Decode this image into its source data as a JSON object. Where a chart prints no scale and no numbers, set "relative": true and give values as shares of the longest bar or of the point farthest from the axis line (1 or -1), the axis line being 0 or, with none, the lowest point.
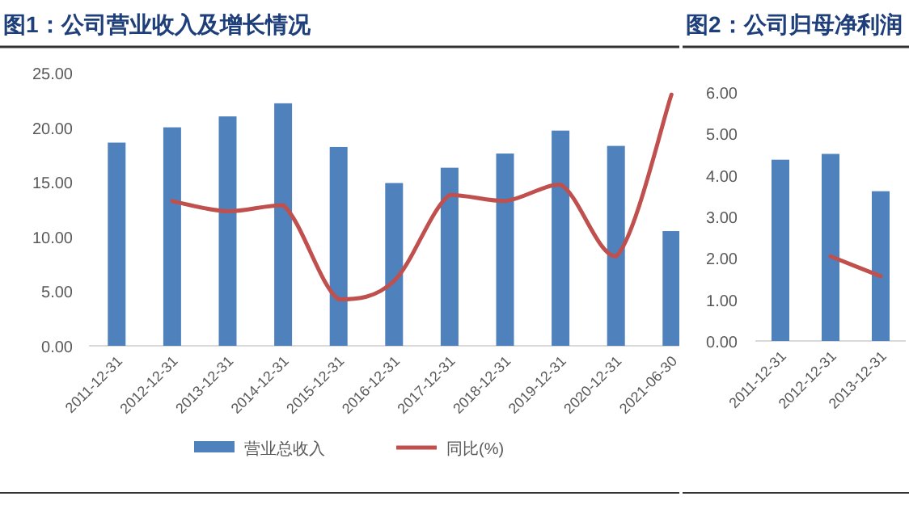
{
  "chart_data": [
    {
      "type": "bar",
      "title": "图1：公司营业收入及增长情况",
      "categories": [
        "2011-12-31",
        "2012-12-31",
        "2013-12-31",
        "2014-12-31",
        "2015-12-31",
        "2016-12-31",
        "2017-12-31",
        "2018-12-31",
        "2019-12-31",
        "2020-12-31",
        "2021-06-30"
      ],
      "ylim": [
        0,
        25
      ],
      "yticks": [
        {
          "value": 0,
          "label": "0.00"
        },
        {
          "value": 5,
          "label": "5.00"
        },
        {
          "value": 10,
          "label": "10.00"
        },
        {
          "value": 15,
          "label": "15.00"
        },
        {
          "value": 20,
          "label": "20.00"
        },
        {
          "value": 25,
          "label": "25.00"
        }
      ],
      "legend": "bottom",
      "series": [
        {
          "name": "营业总收入",
          "color": "#4f81bd",
          "values": [
            18.6,
            20.0,
            21.0,
            22.2,
            18.2,
            14.9,
            16.3,
            17.6,
            19.7,
            18.3,
            10.5
          ]
        }
      ]
    },
    {
      "type": "line",
      "relative": true,
      "categories": [
        null,
        null,
        null,
        null,
        null,
        null,
        null,
        null,
        null,
        null,
        null
      ],
      "legend": "bottom",
      "series": [
        {
          "name": "同比(%)",
          "color": "#c0504d",
          "values": [
            null,
            0.48,
            0.43,
            0.46,
            0,
            0.09,
            0.51,
            0.48,
            0.56,
            0.21,
            1
          ]
        }
      ]
    },
    {
      "type": "bar",
      "title": "图2：公司归母净利润",
      "categories": [
        "2011-12-31",
        "2012-12-31",
        "2013-12-31"
      ],
      "ylim": [
        0,
        6
      ],
      "yticks": [
        {
          "value": 0,
          "label": "0.00"
        },
        {
          "value": 1,
          "label": "1.00"
        },
        {
          "value": 2,
          "label": "2.00"
        },
        {
          "value": 3,
          "label": "3.00"
        },
        {
          "value": 4,
          "label": "4.00"
        },
        {
          "value": 5,
          "label": "5.00"
        },
        {
          "value": 6,
          "label": "6.00"
        }
      ],
      "series": [
        {
          "color": "#4f81bd",
          "values": [
            4.37,
            4.51,
            3.61
          ]
        }
      ]
    },
    {
      "type": "line",
      "relative": true,
      "categories": [
        null,
        null,
        null
      ],
      "series": [
        {
          "color": "#c0504d",
          "values": [
            null,
            1,
            0
          ]
        }
      ]
    }
  ]
}
